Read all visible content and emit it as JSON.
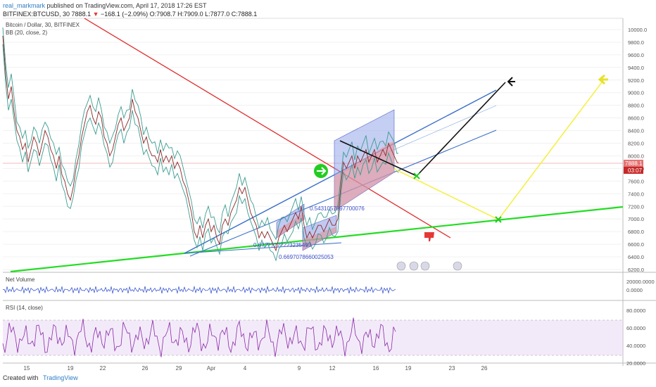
{
  "header": {
    "user": "real_markmark",
    "published": "published on TradingView.com, April 17, 2018 17:26 EST",
    "symbol": "BITFINEX:BTCUSD, 30",
    "last": "7888.1",
    "change": "−168.1 (−2.09%)",
    "ohlc": "O:7908.7 H:7909.0 L:7877.0 C:7888.1"
  },
  "main_pane": {
    "title": "Bitcoin / Dollar, 30, BITFINEX",
    "indicator": "BB (20, close, 2)",
    "price_tag": "7888.1",
    "countdown": "03:07",
    "annotations": [
      "0.5431057597700076",
      "0.6697078660025053",
      "0.6?????????3235493"
    ]
  },
  "volume_pane": {
    "title": "Net Volume",
    "ticks": [
      "20000.0000",
      "0.0000"
    ]
  },
  "rsi_pane": {
    "title": "RSI (14, close)",
    "ticks": [
      "80.0000",
      "60.0000",
      "40.0000",
      "20.0000"
    ]
  },
  "footer": {
    "created": "Created with",
    "brand": "TradingView"
  },
  "colors": {
    "price": "#8b2e2e",
    "bands": "#3a9c8f",
    "trend_red": "#e02b2b",
    "trend_green": "#22dd22",
    "channel_blue": "#3a6fc9",
    "projection_yellow": "#f5f04a",
    "rsi": "#8a2aa8",
    "net_volume": "#2244cc"
  },
  "chart_data": {
    "type": "line",
    "title": "Bitcoin / Dollar, 30, BITFINEX",
    "x_tick_labels": [
      "15",
      "19",
      "22",
      "26",
      "29",
      "Apr",
      "4",
      "9",
      "12",
      "16",
      "19",
      "23",
      "26"
    ],
    "y_tick_labels": [
      "10000.0",
      "9800.0",
      "9600.0",
      "9400.0",
      "9200.0",
      "9000.0",
      "8800.0",
      "8600.0",
      "8400.0",
      "8200.0",
      "8000.0",
      "7800.0",
      "7600.0",
      "7400.0",
      "7200.0",
      "7000.0",
      "6800.0",
      "6600.0",
      "6400.0",
      "6200.0"
    ],
    "ylim": [
      6150,
      10100
    ],
    "series": [
      {
        "values": [
          [
            0,
            9900
          ],
          [
            4,
            9300
          ],
          [
            8,
            8900
          ],
          [
            12,
            9100
          ],
          [
            16,
            8700
          ],
          [
            20,
            8400
          ],
          [
            24,
            8300
          ],
          [
            28,
            8100
          ],
          [
            32,
            8200
          ],
          [
            36,
            7900
          ],
          [
            40,
            8100
          ],
          [
            44,
            8300
          ],
          [
            48,
            8200
          ],
          [
            52,
            8000
          ],
          [
            56,
            8200
          ],
          [
            60,
            8400
          ],
          [
            64,
            8300
          ],
          [
            68,
            8100
          ],
          [
            72,
            8000
          ],
          [
            76,
            7800
          ],
          [
            80,
            8000
          ],
          [
            84,
            7700
          ],
          [
            88,
            7600
          ],
          [
            92,
            7400
          ],
          [
            96,
            7300
          ],
          [
            100,
            7500
          ],
          [
            104,
            7800
          ],
          [
            108,
            8000
          ],
          [
            112,
            8300
          ],
          [
            116,
            8500
          ],
          [
            120,
            8700
          ],
          [
            124,
            8800
          ],
          [
            128,
            8600
          ],
          [
            132,
            8500
          ],
          [
            136,
            8700
          ],
          [
            140,
            8600
          ],
          [
            144,
            8300
          ],
          [
            148,
            8200
          ],
          [
            152,
            8000
          ],
          [
            156,
            8100
          ],
          [
            160,
            8300
          ],
          [
            164,
            8500
          ],
          [
            168,
            8600
          ],
          [
            172,
            8400
          ],
          [
            176,
            8500
          ],
          [
            180,
            8600
          ],
          [
            184,
            8900
          ],
          [
            188,
            8700
          ],
          [
            192,
            8600
          ],
          [
            196,
            8400
          ],
          [
            200,
            8200
          ],
          [
            204,
            8300
          ],
          [
            208,
            8100
          ],
          [
            212,
            8000
          ],
          [
            216,
            8000
          ],
          [
            220,
            7900
          ],
          [
            224,
            8100
          ],
          [
            228,
            7900
          ],
          [
            232,
            8000
          ],
          [
            236,
            7900
          ],
          [
            240,
            8000
          ],
          [
            244,
            7800
          ],
          [
            248,
            7900
          ],
          [
            252,
            7800
          ],
          [
            256,
            7600
          ],
          [
            260,
            7500
          ],
          [
            264,
            7300
          ],
          [
            268,
            7100
          ],
          [
            272,
            6800
          ],
          [
            276,
            6700
          ],
          [
            280,
            6900
          ],
          [
            284,
            6700
          ],
          [
            288,
            6900
          ],
          [
            292,
            7000
          ],
          [
            296,
            6800
          ],
          [
            300,
            6900
          ],
          [
            304,
            6700
          ],
          [
            308,
            6600
          ],
          [
            312,
            6900
          ],
          [
            316,
            7000
          ],
          [
            320,
            6900
          ],
          [
            324,
            7100
          ],
          [
            328,
            7200
          ],
          [
            332,
            7300
          ],
          [
            336,
            7500
          ],
          [
            340,
            7400
          ],
          [
            344,
            7500
          ],
          [
            348,
            7300
          ],
          [
            352,
            7100
          ],
          [
            356,
            7000
          ],
          [
            360,
            6900
          ],
          [
            364,
            6700
          ],
          [
            368,
            6800
          ],
          [
            372,
            6700
          ],
          [
            376,
            6800
          ],
          [
            380,
            6700
          ],
          [
            384,
            6600
          ],
          [
            388,
            6500
          ],
          [
            392,
            6700
          ],
          [
            396,
            6800
          ],
          [
            400,
            6900
          ],
          [
            404,
            6800
          ],
          [
            408,
            6900
          ],
          [
            412,
            7000
          ],
          [
            416,
            7100
          ],
          [
            420,
            7000
          ],
          [
            424,
            7200
          ],
          [
            428,
            6900
          ],
          [
            432,
            6700
          ],
          [
            436,
            6800
          ],
          [
            440,
            6700
          ],
          [
            444,
            6800
          ],
          [
            448,
            6900
          ],
          [
            452,
            6900
          ],
          [
            456,
            6800
          ],
          [
            460,
            6900
          ],
          [
            464,
            7000
          ],
          [
            468,
            6900
          ],
          [
            472,
            6900
          ],
          [
            476,
            7000
          ],
          [
            480,
            7500
          ],
          [
            484,
            7900
          ],
          [
            488,
            7800
          ],
          [
            492,
            7900
          ],
          [
            496,
            8000
          ],
          [
            500,
            7800
          ],
          [
            504,
            8000
          ],
          [
            508,
            7900
          ],
          [
            512,
            8000
          ],
          [
            516,
            8100
          ],
          [
            520,
            7900
          ],
          [
            524,
            8000
          ],
          [
            528,
            8100
          ],
          [
            532,
            7900
          ],
          [
            536,
            8000
          ],
          [
            540,
            8100
          ],
          [
            544,
            8000
          ],
          [
            548,
            8200
          ],
          [
            552,
            8100
          ],
          [
            556,
            8000
          ],
          [
            560,
            7900
          ],
          [
            562,
            7888
          ]
        ]
      }
    ]
  }
}
